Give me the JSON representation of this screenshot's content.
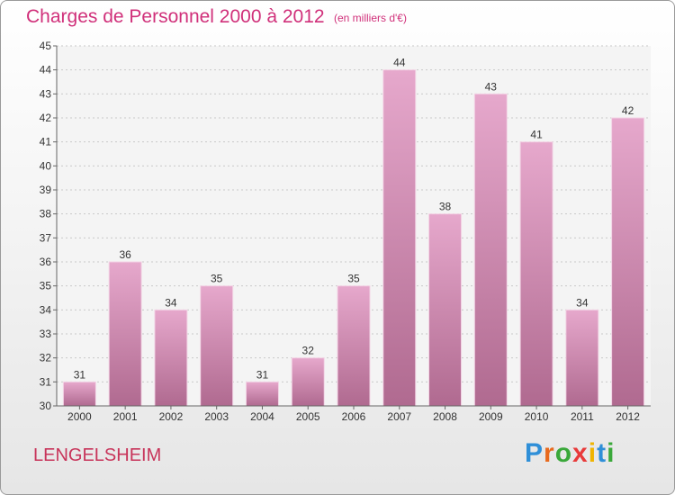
{
  "chart_data": {
    "type": "bar",
    "title": "Charges de Personnel 2000 à 2012",
    "subtitle": "(en milliers d'€)",
    "categories": [
      "2000",
      "2001",
      "2002",
      "2003",
      "2004",
      "2005",
      "2006",
      "2007",
      "2008",
      "2009",
      "2010",
      "2011",
      "2012"
    ],
    "values": [
      31,
      36,
      34,
      35,
      31,
      32,
      35,
      44,
      38,
      43,
      41,
      34,
      42
    ],
    "ylim": [
      30,
      45
    ],
    "yticks": [
      30,
      31,
      32,
      33,
      34,
      35,
      36,
      37,
      38,
      39,
      40,
      41,
      42,
      43,
      44,
      45
    ],
    "grid": true,
    "bar_color": "#c0709a"
  },
  "footer": {
    "city": "LENGELSHEIM",
    "logo_letters": [
      "P",
      "r",
      "o",
      "x",
      "i",
      "t",
      "i"
    ],
    "logo_colors": [
      "#2f8fd8",
      "#e86a1e",
      "#3aa83a",
      "#e83a3a",
      "#f0b400",
      "#2f8fd8",
      "#3aa83a"
    ]
  }
}
